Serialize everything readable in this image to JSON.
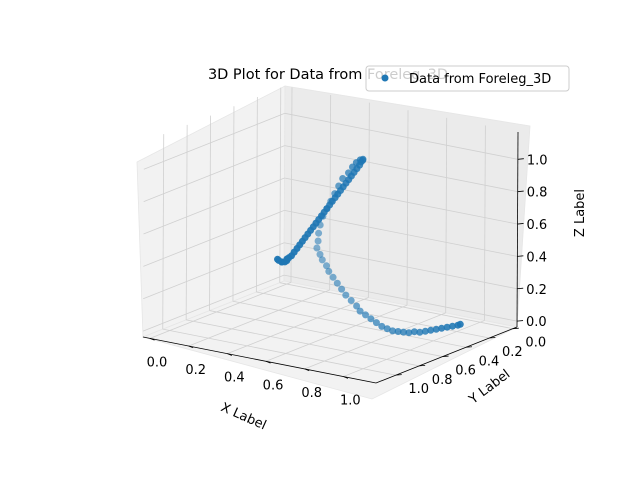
{
  "chart_data": {
    "type": "scatter",
    "projection": "3d",
    "title": "3D Plot for Data from Foreleg_3D",
    "xlabel": "X Label",
    "ylabel": "Y Label",
    "zlabel": "Z Label",
    "xlim": [
      0.0,
      1.0
    ],
    "ylim": [
      0.0,
      1.0
    ],
    "zlim": [
      0.0,
      1.0
    ],
    "x_ticks": [
      "0.0",
      "0.2",
      "0.4",
      "0.6",
      "0.8",
      "1.0"
    ],
    "y_ticks": [
      "0.0",
      "0.2",
      "0.4",
      "0.6",
      "0.8",
      "1.0"
    ],
    "z_ticks": [
      "0.0",
      "0.2",
      "0.4",
      "0.6",
      "0.8",
      "1.0"
    ],
    "grid": true,
    "legend": {
      "entries": [
        "Data from Foreleg_3D"
      ],
      "placement": "top-right"
    },
    "marker_color": "#1f77b4",
    "series": [
      {
        "name": "Data from Foreleg_3D",
        "x": [
          0.0,
          0.0,
          0.01,
          0.01,
          0.02,
          0.03,
          0.03,
          0.04,
          0.06,
          0.08,
          0.1,
          0.12,
          0.14,
          0.16,
          0.18,
          0.2,
          0.22,
          0.24,
          0.26,
          0.28,
          0.3,
          0.32,
          0.34,
          0.36,
          0.38,
          0.4,
          0.42,
          0.44,
          0.46,
          0.48,
          0.5,
          0.52,
          0.54,
          0.56,
          0.58,
          0.6,
          0.62,
          0.63,
          0.64,
          0.65,
          0.66,
          0.66,
          0.67,
          0.68,
          0.69,
          0.7,
          0.71,
          0.72,
          0.73,
          0.74,
          0.74,
          0.75,
          0.75,
          0.76,
          0.76,
          0.77,
          0.78,
          0.79,
          0.8,
          0.81,
          0.82,
          0.82,
          0.83,
          0.84,
          0.85,
          0.86,
          0.87,
          0.88,
          0.89,
          0.9,
          0.91,
          0.92,
          0.93,
          0.94,
          0.95,
          0.96,
          0.97,
          0.98,
          0.99,
          1.0,
          1.0
        ],
        "y": [
          0.08,
          0.07,
          0.06,
          0.06,
          0.05,
          0.05,
          0.05,
          0.05,
          0.06,
          0.07,
          0.08,
          0.09,
          0.1,
          0.11,
          0.12,
          0.13,
          0.14,
          0.15,
          0.16,
          0.17,
          0.18,
          0.19,
          0.2,
          0.21,
          0.22,
          0.23,
          0.24,
          0.25,
          0.26,
          0.27,
          0.28,
          0.29,
          0.3,
          0.31,
          0.33,
          0.35,
          0.38,
          0.42,
          0.47,
          0.52,
          0.57,
          0.62,
          0.67,
          0.72,
          0.77,
          0.82,
          0.87,
          0.91,
          0.94,
          0.96,
          0.97,
          0.96,
          0.94,
          0.92,
          0.9,
          0.88,
          0.86,
          0.84,
          0.82,
          0.79,
          0.76,
          0.73,
          0.7,
          0.67,
          0.64,
          0.61,
          0.58,
          0.55,
          0.52,
          0.49,
          0.46,
          0.43,
          0.4,
          0.37,
          0.34,
          0.31,
          0.28,
          0.25,
          0.22,
          0.19,
          0.17
        ],
        "z": [
          0.14,
          0.13,
          0.12,
          0.12,
          0.12,
          0.13,
          0.14,
          0.15,
          0.17,
          0.2,
          0.23,
          0.26,
          0.29,
          0.32,
          0.35,
          0.38,
          0.41,
          0.44,
          0.47,
          0.5,
          0.53,
          0.56,
          0.59,
          0.62,
          0.65,
          0.68,
          0.71,
          0.74,
          0.77,
          0.8,
          0.83,
          0.86,
          0.89,
          0.92,
          0.95,
          0.97,
          0.99,
          1.0,
          1.0,
          0.99,
          0.97,
          0.95,
          0.92,
          0.89,
          0.86,
          0.83,
          0.8,
          0.76,
          0.72,
          0.68,
          0.64,
          0.6,
          0.56,
          0.52,
          0.48,
          0.44,
          0.4,
          0.36,
          0.32,
          0.28,
          0.24,
          0.2,
          0.17,
          0.14,
          0.11,
          0.08,
          0.06,
          0.04,
          0.03,
          0.02,
          0.01,
          0.01,
          0.0,
          0.0,
          0.0,
          0.0,
          0.0,
          0.0,
          0.0,
          0.0,
          0.0
        ]
      }
    ]
  }
}
